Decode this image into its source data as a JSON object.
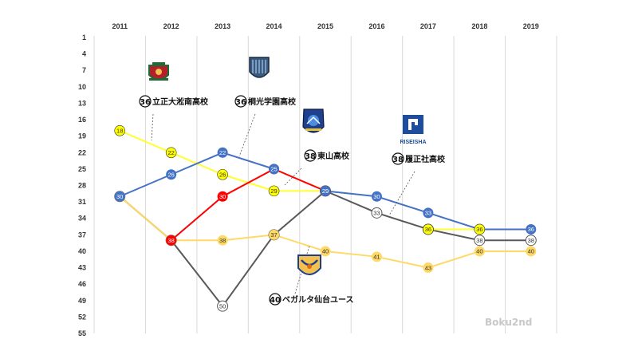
{
  "chart_data": {
    "type": "line",
    "x": [
      "2011",
      "2012",
      "2013",
      "2014",
      "2015",
      "2016",
      "2017",
      "2018",
      "2019"
    ],
    "y_ticks": [
      1,
      4,
      7,
      10,
      13,
      16,
      19,
      22,
      25,
      28,
      31,
      34,
      37,
      40,
      43,
      46,
      49,
      52,
      55
    ],
    "ylim": [
      1,
      55
    ],
    "y_inverted": true,
    "grid": "vertical",
    "series": [
      {
        "values": [
          18,
          22,
          26,
          29,
          29,
          null,
          null,
          null,
          null
        ],
        "color": "#ffff33",
        "marker_fill": "#ffff00",
        "text_color": "#333333"
      },
      {
        "values": [
          30,
          26,
          22,
          25,
          null,
          null,
          null,
          null,
          null
        ],
        "color": "#4472c4",
        "marker_fill": "#4472c4",
        "text_color": "#ffffff"
      },
      {
        "values": [
          null,
          38,
          30,
          25,
          29,
          null,
          null,
          null,
          null
        ],
        "color": "#ff0000",
        "marker_fill": "#ff0000",
        "text_color": "#ffffff"
      },
      {
        "values": [
          null,
          null,
          null,
          null,
          29,
          30,
          33,
          36,
          36
        ],
        "color": "#4472c4",
        "marker_fill": "#4472c4",
        "text_color": "#ffffff"
      },
      {
        "values": [
          null,
          null,
          null,
          null,
          null,
          null,
          36,
          36,
          null
        ],
        "color": "#ffff33",
        "marker_fill": "#ffff00",
        "text_color": "#333333"
      },
      {
        "values": [
          30,
          38,
          50,
          37,
          29,
          33,
          36,
          38,
          38
        ],
        "color": "#595959",
        "marker_fill": "#ffffff",
        "text_color": "#333333"
      },
      {
        "values": [
          30,
          38,
          38,
          37,
          40,
          41,
          43,
          40,
          40
        ],
        "color": "#ffd966",
        "marker_fill": "#ffd966",
        "text_color": "#333333"
      }
    ],
    "annotations": [
      {
        "num": "36",
        "text": "立正大淞南高校",
        "logo": "crest-red"
      },
      {
        "num": "36",
        "text": "桐光学園高校",
        "logo": "shield-blue"
      },
      {
        "num": "38",
        "text": "東山高校",
        "logo": "emblem-blue"
      },
      {
        "num": "38",
        "text": "履正社高校",
        "logo": "riseisha",
        "logo_text": "RISEISHA"
      },
      {
        "num": "40",
        "text": "ベガルタ仙台ユース",
        "logo": "vegalta"
      }
    ],
    "watermark": "Boku2nd"
  }
}
